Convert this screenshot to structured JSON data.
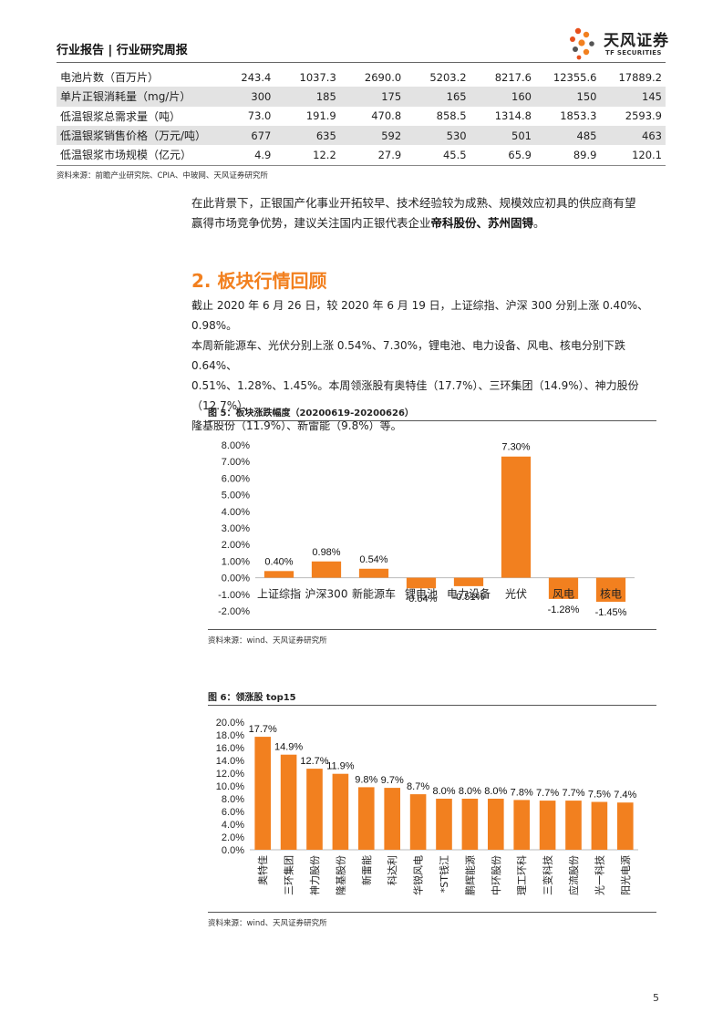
{
  "header": {
    "title": "行业报告 | 行业研究周报",
    "logo_cn": "天风证券",
    "logo_en": "TF SECURITIES"
  },
  "table": {
    "rows": [
      {
        "label": "电池片数（百万片）",
        "values": [
          "243.4",
          "1037.3",
          "2690.0",
          "5203.2",
          "8217.6",
          "12355.6",
          "17889.2"
        ],
        "shaded": false
      },
      {
        "label": "单片正银消耗量（mg/片）",
        "values": [
          "300",
          "185",
          "175",
          "165",
          "160",
          "150",
          "145"
        ],
        "shaded": true
      },
      {
        "label": "低温银浆总需求量（吨）",
        "values": [
          "73.0",
          "191.9",
          "470.8",
          "858.5",
          "1314.8",
          "1853.3",
          "2593.9"
        ],
        "shaded": false
      },
      {
        "label": "低温银浆销售价格（万元/吨）",
        "values": [
          "677",
          "635",
          "592",
          "530",
          "501",
          "485",
          "463"
        ],
        "shaded": true
      },
      {
        "label": "低温银浆市场规模（亿元）",
        "values": [
          "4.9",
          "12.2",
          "27.9",
          "45.5",
          "65.9",
          "89.9",
          "120.1"
        ],
        "shaded": false
      }
    ],
    "source": "资料来源：前瞻产业研究院、CPIA、中玻网、天风证券研究所"
  },
  "para1": {
    "line1": "在此背景下，正银国产化事业开拓较早、技术经验较为成熟、规模效应初具的供应商有望",
    "line2_prefix": "赢得市场竞争优势，建议关注国内正银代表企业",
    "line2_bold": "帝科股份、苏州固锝",
    "line2_suffix": "。"
  },
  "section": {
    "title": "2. 板块行情回顾"
  },
  "para2": {
    "line1": "截止 2020 年 6 月 26 日，较 2020 年 6 月 19 日，上证综指、沪深 300 分别上涨 0.40%、0.98%。",
    "line2": "本周新能源车、光伏分别上涨 0.54%、7.30%，锂电池、电力设备、风电、核电分别下跌 0.64%、",
    "line3": "0.51%、1.28%、1.45%。本周领涨股有奥特佳（17.7%）、三环集团（14.9%）、神力股份（12.7%）、",
    "line4": "隆基股份（11.9%）、新雷能（9.8%）等。"
  },
  "fig5": {
    "title": "图 5：板块涨跌幅度（20200619-20200626）",
    "source": "资料来源：wind、天风证券研究所"
  },
  "fig6": {
    "title": "图 6：领涨股 top15",
    "source": "资料来源：wind、天风证券研究所"
  },
  "chart_data": [
    {
      "type": "bar",
      "title": "",
      "xlabel": "",
      "ylabel": "",
      "categories": [
        "上证综指",
        "沪深300",
        "新能源车",
        "锂电池",
        "电力设备",
        "光伏",
        "风电",
        "核电"
      ],
      "values": [
        0.4,
        0.98,
        0.54,
        -0.64,
        -0.51,
        7.3,
        -1.28,
        -1.45
      ],
      "value_labels": [
        "0.40%",
        "0.98%",
        "0.54%",
        "-0.64%",
        "-0.51%",
        "7.30%",
        "-1.28%",
        "-1.45%"
      ],
      "ylim": [
        -2,
        8
      ],
      "yticks": [
        "8.00%",
        "7.00%",
        "6.00%",
        "5.00%",
        "4.00%",
        "3.00%",
        "2.00%",
        "1.00%",
        "0.00%",
        "-1.00%",
        "-2.00%"
      ],
      "bar_color": "#f2801f",
      "grid": false
    },
    {
      "type": "bar",
      "title": "",
      "xlabel": "",
      "ylabel": "",
      "categories": [
        "奥特佳",
        "三环集团",
        "神力股份",
        "隆基股份",
        "新雷能",
        "科达利",
        "华锐风电",
        "*ST钱江",
        "鹏辉能源",
        "中环股份",
        "理工环科",
        "三变科技",
        "应流股份",
        "光一科技",
        "阳光电源"
      ],
      "values": [
        17.7,
        14.9,
        12.7,
        11.9,
        9.8,
        9.7,
        8.7,
        8.0,
        8.0,
        8.0,
        7.8,
        7.7,
        7.7,
        7.5,
        7.4
      ],
      "value_labels": [
        "17.7%",
        "14.9%",
        "12.7%",
        "11.9%",
        "9.8%",
        "9.7%",
        "8.7%",
        "8.0%",
        "8.0%",
        "8.0%",
        "7.8%",
        "7.7%",
        "7.7%",
        "7.5%",
        "7.4%"
      ],
      "ylim": [
        0,
        20
      ],
      "yticks": [
        "20.0%",
        "18.0%",
        "16.0%",
        "14.0%",
        "12.0%",
        "10.0%",
        "8.0%",
        "6.0%",
        "4.0%",
        "2.0%",
        "0.0%"
      ],
      "bar_color": "#f2801f",
      "grid": false
    }
  ],
  "page_number": "5"
}
